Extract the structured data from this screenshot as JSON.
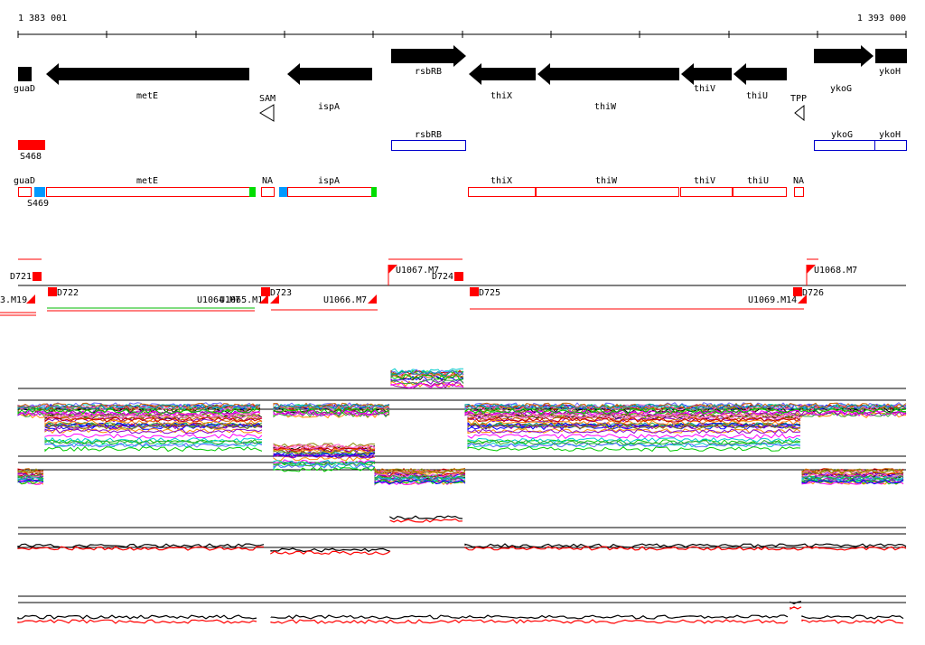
{
  "coords": {
    "start": "1 383 001",
    "end": "1 393 000"
  },
  "genes": [
    {
      "label": "guaD"
    },
    {
      "label": "metE"
    },
    {
      "label": "SAM"
    },
    {
      "label": "ispA"
    },
    {
      "label": "rsbRB"
    },
    {
      "label": "thiX"
    },
    {
      "label": "thiW"
    },
    {
      "label": "thiV"
    },
    {
      "label": "thiU"
    },
    {
      "label": "TPP"
    },
    {
      "label": "ykoG"
    },
    {
      "label": "ykoH"
    }
  ],
  "annotation_row1": [
    {
      "label": "S468"
    },
    {
      "label": "rsbRB"
    },
    {
      "label": "ykoG"
    },
    {
      "label": "ykoH"
    }
  ],
  "annotation_row2": [
    {
      "label": "guaD"
    },
    {
      "label": "S469"
    },
    {
      "label": "metE"
    },
    {
      "label": "NA"
    },
    {
      "label": "ispA"
    },
    {
      "label": "thiX"
    },
    {
      "label": "thiW"
    },
    {
      "label": "thiV"
    },
    {
      "label": "thiU"
    },
    {
      "label": "NA"
    }
  ],
  "segments": [
    {
      "label": "D721"
    },
    {
      "label": "3.M19"
    },
    {
      "label": "D722"
    },
    {
      "label": "U1064.M7"
    },
    {
      "label": "U1065.M14"
    },
    {
      "label": "D723"
    },
    {
      "label": "U1066.M7"
    },
    {
      "label": "U1067.M7"
    },
    {
      "label": "D724"
    },
    {
      "label": "D725"
    },
    {
      "label": "U1069.M14"
    },
    {
      "label": "D726"
    },
    {
      "label": "U1068.M7"
    }
  ],
  "colors": {
    "gene_fill": "#000000",
    "annotation_red": "#ff0000",
    "annotation_blue": "#0000cc",
    "start_marker": "#0099ff",
    "end_marker": "#00dd00"
  }
}
